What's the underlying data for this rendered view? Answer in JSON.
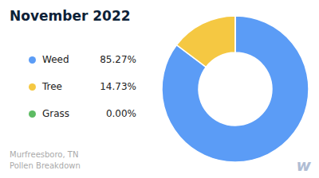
{
  "chart_data": {
    "type": "pie",
    "title": "November 2022",
    "subtitle": [
      "Murfreesboro, TN",
      "Pollen Breakdown"
    ],
    "categories": [
      "Weed",
      "Tree",
      "Grass"
    ],
    "values": [
      85.27,
      14.73,
      0.001
    ],
    "value_labels": [
      "85.27%",
      "14.73%",
      "0.00%"
    ],
    "colors": [
      "#5B9CF6",
      "#F5C842",
      "#5DBB63"
    ],
    "legend": "left",
    "annotations": [
      "w"
    ]
  }
}
